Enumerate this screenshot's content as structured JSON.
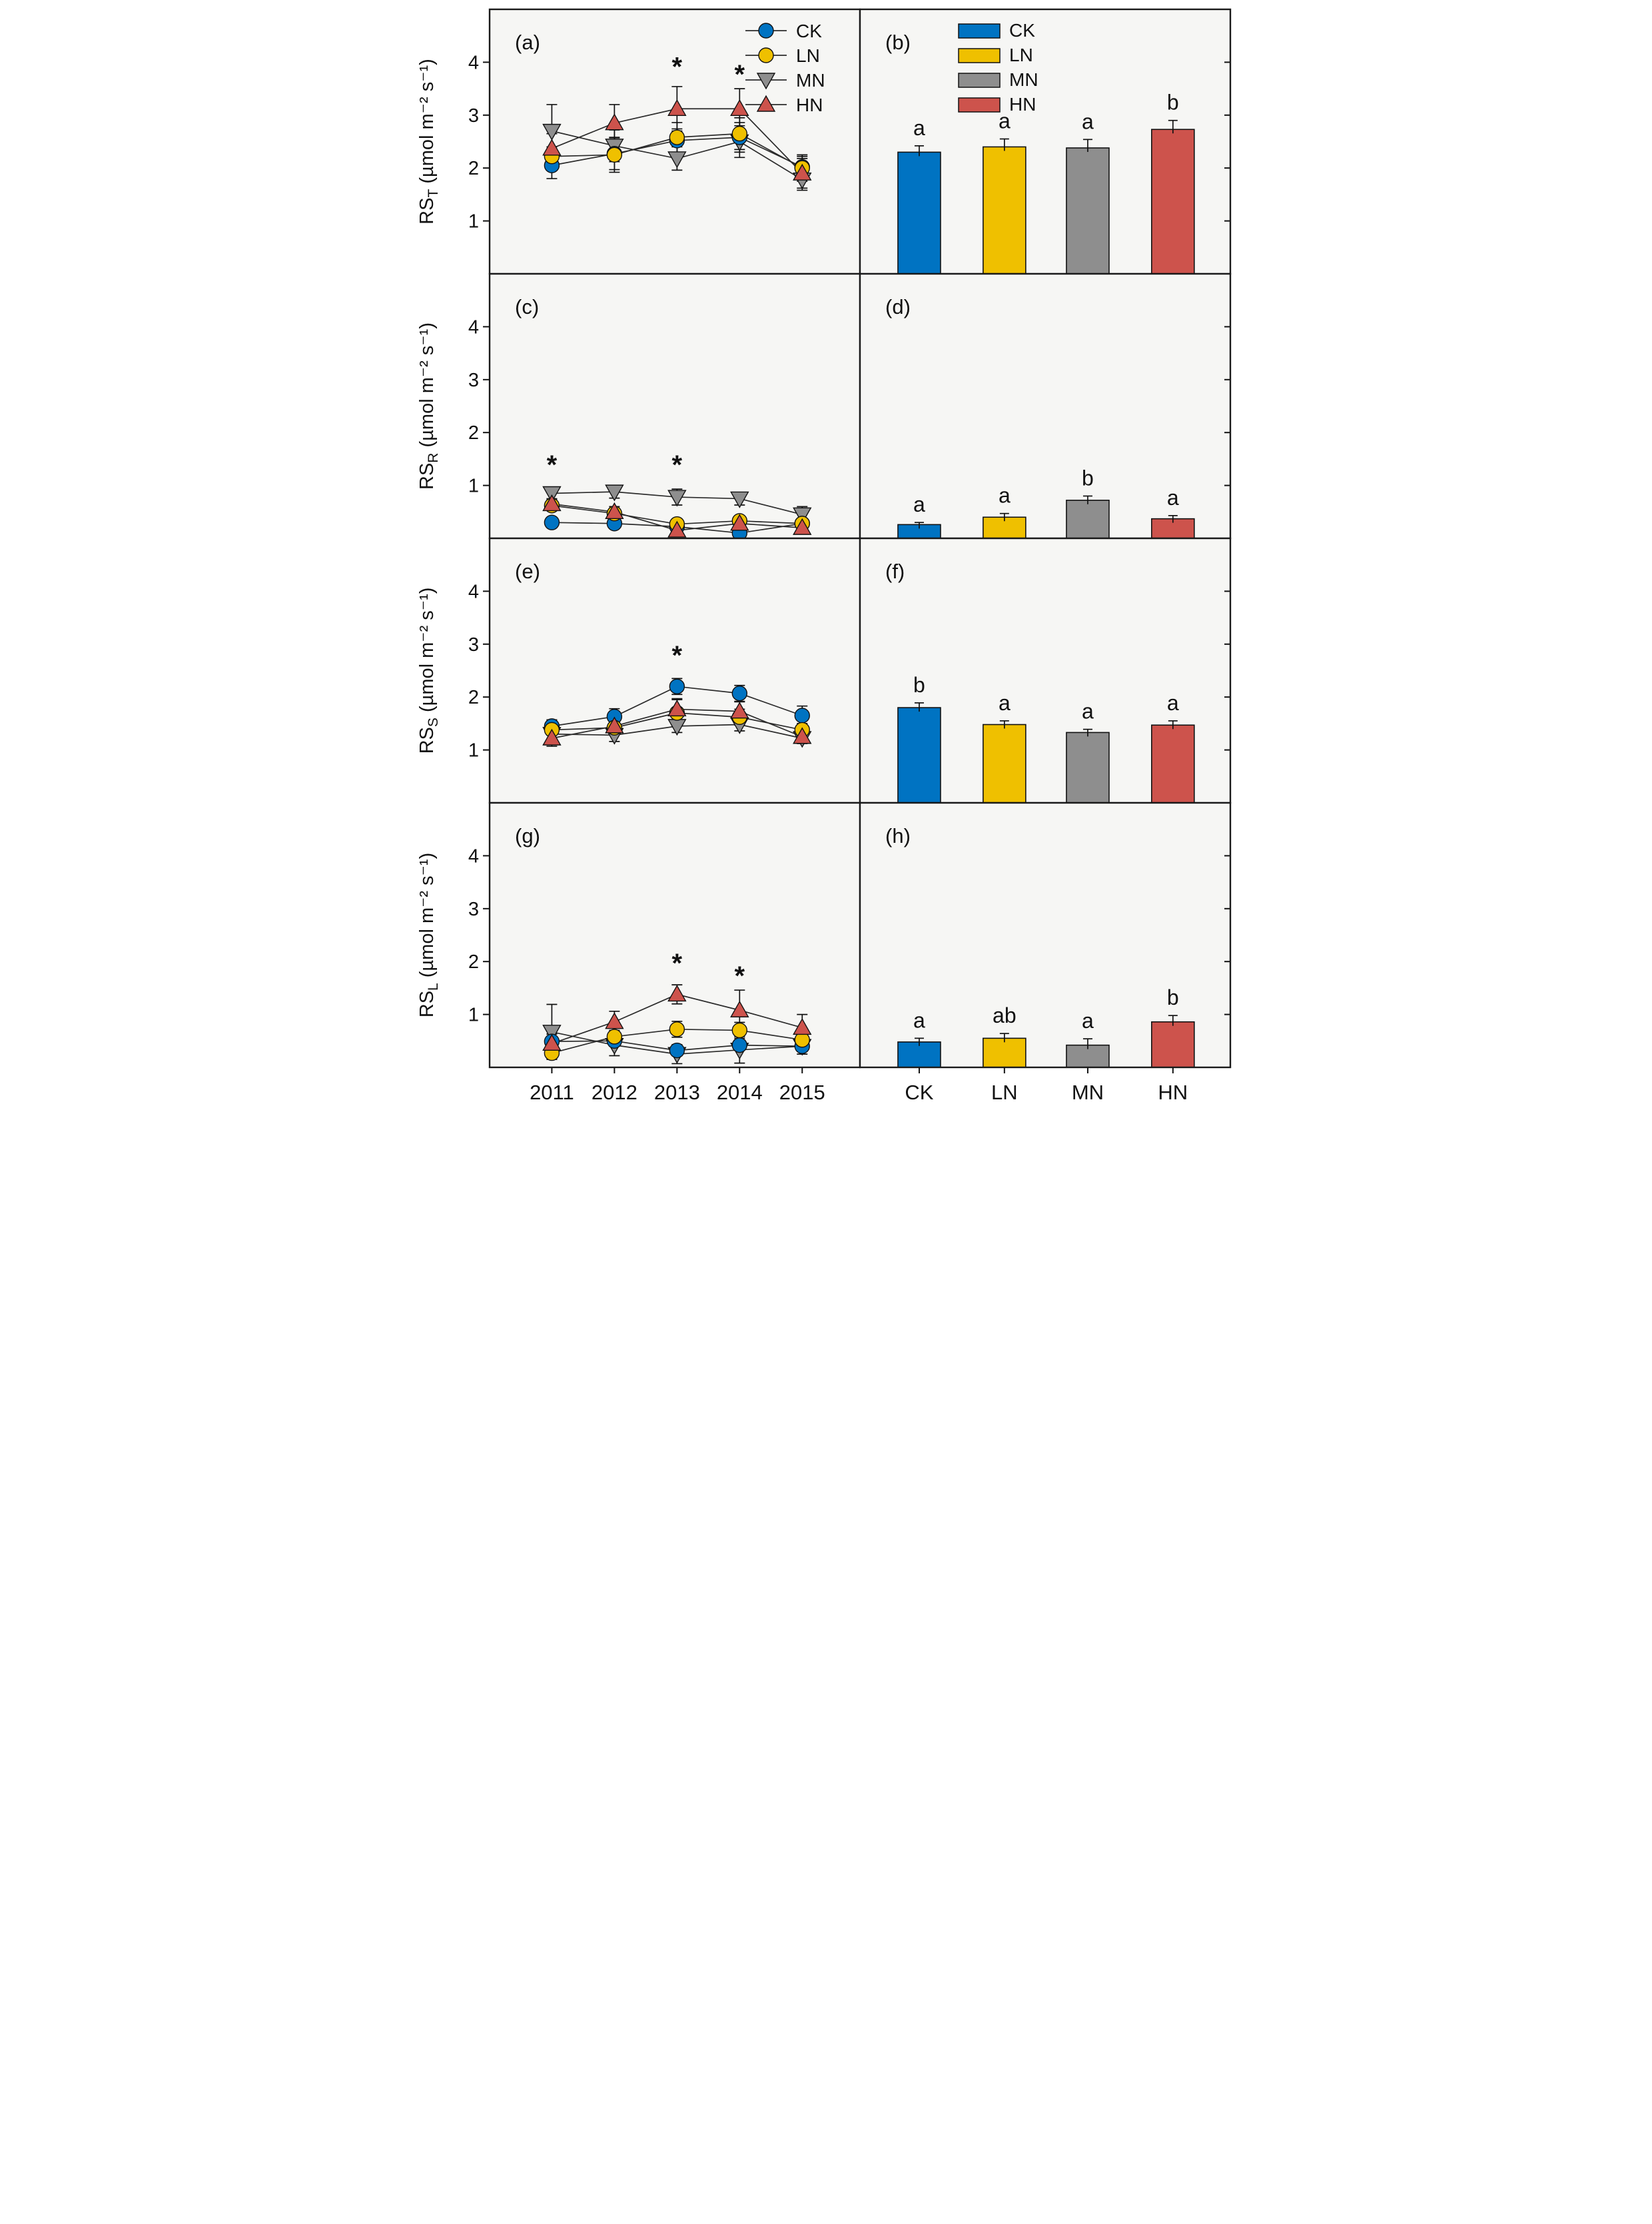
{
  "figure": {
    "background": "#ffffff",
    "panel_background": "#f6f6f4",
    "border_color": "#1a1a1a"
  },
  "palette": {
    "CK": "#0073C2",
    "LN": "#EFC000",
    "MN": "#8E8E8E",
    "HN": "#CD534C"
  },
  "axes": {
    "ylim": [
      0,
      5
    ],
    "yticks": [
      "1",
      "2",
      "3",
      "4"
    ],
    "ylabel_prefix": "RS",
    "ylabel_unit": "(µmol m⁻² s⁻¹)",
    "years": [
      "2011",
      "2012",
      "2013",
      "2014",
      "2015"
    ],
    "treatments": [
      "CK",
      "LN",
      "MN",
      "HN"
    ]
  },
  "legend": {
    "items": [
      {
        "label": "CK",
        "marker": "circle",
        "color": "#0073C2"
      },
      {
        "label": "LN",
        "marker": "circle",
        "color": "#EFC000"
      },
      {
        "label": "MN",
        "marker": "triangle-down",
        "color": "#8E8E8E"
      },
      {
        "label": "HN",
        "marker": "triangle-up",
        "color": "#CD534C"
      }
    ]
  },
  "chart_data": [
    {
      "panel": "(a)",
      "type": "line",
      "row": 0,
      "col": 0,
      "ylabel_sub": "T",
      "x": [
        "2011",
        "2012",
        "2013",
        "2014",
        "2015"
      ],
      "series": [
        {
          "name": "CK",
          "marker": "circle",
          "color": "#0073C2",
          "values": [
            2.05,
            2.27,
            2.52,
            2.58,
            2.02
          ],
          "errors": [
            0.25,
            0.3,
            0.22,
            0.28,
            0.2
          ]
        },
        {
          "name": "LN",
          "marker": "circle",
          "color": "#EFC000",
          "values": [
            2.22,
            2.25,
            2.58,
            2.65,
            2.0
          ],
          "errors": [
            0.18,
            0.33,
            0.28,
            0.3,
            0.25
          ]
        },
        {
          "name": "MN",
          "marker": "triangle-down",
          "color": "#8E8E8E",
          "values": [
            2.7,
            2.42,
            2.18,
            2.5,
            1.78
          ],
          "errors": [
            0.5,
            0.3,
            0.22,
            0.3,
            0.2
          ]
        },
        {
          "name": "HN",
          "marker": "triangle-up",
          "color": "#CD534C",
          "values": [
            2.37,
            2.85,
            3.12,
            3.12,
            1.9
          ],
          "errors": [
            0.28,
            0.35,
            0.42,
            0.38,
            0.28
          ]
        }
      ],
      "asterisks": [
        {
          "x": "2013",
          "y": 3.75,
          "symbol": "*"
        },
        {
          "x": "2014",
          "y": 3.6,
          "symbol": "*"
        }
      ],
      "show_line_legend": true,
      "show_xticklabels": false
    },
    {
      "panel": "(b)",
      "type": "bar",
      "row": 0,
      "col": 1,
      "categories": [
        "CK",
        "LN",
        "MN",
        "HN"
      ],
      "values": [
        2.3,
        2.4,
        2.38,
        2.73
      ],
      "errors": [
        0.12,
        0.15,
        0.16,
        0.17
      ],
      "letters": [
        "a",
        "a",
        "a",
        "b"
      ],
      "colors": [
        "#0073C2",
        "#EFC000",
        "#8E8E8E",
        "#CD534C"
      ],
      "show_bar_legend": true,
      "show_xticklabels": false
    },
    {
      "panel": "(c)",
      "type": "line",
      "row": 1,
      "col": 0,
      "ylabel_sub": "R",
      "x": [
        "2011",
        "2012",
        "2013",
        "2014",
        "2015"
      ],
      "series": [
        {
          "name": "CK",
          "marker": "circle",
          "color": "#0073C2",
          "values": [
            0.3,
            0.28,
            0.22,
            0.1,
            0.28
          ],
          "errors": [
            0.05,
            0.05,
            0.04,
            0.04,
            0.05
          ]
        },
        {
          "name": "LN",
          "marker": "circle",
          "color": "#EFC000",
          "values": [
            0.62,
            0.47,
            0.27,
            0.33,
            0.28
          ],
          "errors": [
            0.09,
            0.09,
            0.05,
            0.08,
            0.06
          ]
        },
        {
          "name": "MN",
          "marker": "triangle-down",
          "color": "#8E8E8E",
          "values": [
            0.85,
            0.88,
            0.78,
            0.75,
            0.45
          ],
          "errors": [
            0.12,
            0.12,
            0.15,
            0.12,
            0.15
          ]
        },
        {
          "name": "HN",
          "marker": "triangle-up",
          "color": "#CD534C",
          "values": [
            0.65,
            0.5,
            0.15,
            0.28,
            0.2
          ],
          "errors": [
            0.1,
            0.1,
            0.04,
            0.06,
            0.05
          ]
        }
      ],
      "asterisks": [
        {
          "x": "2011",
          "y": 1.22,
          "symbol": "*"
        },
        {
          "x": "2013",
          "y": 1.22,
          "symbol": "*"
        }
      ],
      "show_line_legend": false,
      "show_xticklabels": false
    },
    {
      "panel": "(d)",
      "type": "bar",
      "row": 1,
      "col": 1,
      "categories": [
        "CK",
        "LN",
        "MN",
        "HN"
      ],
      "values": [
        0.26,
        0.4,
        0.72,
        0.37
      ],
      "errors": [
        0.04,
        0.07,
        0.08,
        0.06
      ],
      "letters": [
        "a",
        "a",
        "b",
        "a"
      ],
      "colors": [
        "#0073C2",
        "#EFC000",
        "#8E8E8E",
        "#CD534C"
      ],
      "show_bar_legend": false,
      "show_xticklabels": false
    },
    {
      "panel": "(e)",
      "type": "line",
      "row": 2,
      "col": 0,
      "ylabel_sub": "S",
      "x": [
        "2011",
        "2012",
        "2013",
        "2014",
        "2015"
      ],
      "series": [
        {
          "name": "CK",
          "marker": "circle",
          "color": "#0073C2",
          "values": [
            1.45,
            1.63,
            2.2,
            2.07,
            1.65
          ],
          "errors": [
            0.12,
            0.15,
            0.15,
            0.15,
            0.18
          ]
        },
        {
          "name": "LN",
          "marker": "circle",
          "color": "#EFC000",
          "values": [
            1.38,
            1.42,
            1.7,
            1.62,
            1.38
          ],
          "errors": [
            0.1,
            0.12,
            0.25,
            0.15,
            0.12
          ]
        },
        {
          "name": "MN",
          "marker": "triangle-down",
          "color": "#8E8E8E",
          "values": [
            1.3,
            1.28,
            1.45,
            1.48,
            1.22
          ],
          "errors": [
            0.1,
            0.12,
            0.12,
            0.12,
            0.1
          ]
        },
        {
          "name": "HN",
          "marker": "triangle-up",
          "color": "#CD534C",
          "values": [
            1.22,
            1.45,
            1.77,
            1.73,
            1.25
          ],
          "errors": [
            0.15,
            0.15,
            0.2,
            0.18,
            0.12
          ]
        }
      ],
      "asterisks": [
        {
          "x": "2013",
          "y": 2.62,
          "symbol": "*"
        }
      ],
      "show_line_legend": false,
      "show_xticklabels": false
    },
    {
      "panel": "(f)",
      "type": "bar",
      "row": 2,
      "col": 1,
      "categories": [
        "CK",
        "LN",
        "MN",
        "HN"
      ],
      "values": [
        1.8,
        1.48,
        1.33,
        1.47
      ],
      "errors": [
        0.09,
        0.07,
        0.06,
        0.08
      ],
      "letters": [
        "b",
        "a",
        "a",
        "a"
      ],
      "colors": [
        "#0073C2",
        "#EFC000",
        "#8E8E8E",
        "#CD534C"
      ],
      "show_bar_legend": false,
      "show_xticklabels": false
    },
    {
      "panel": "(g)",
      "type": "line",
      "row": 3,
      "col": 0,
      "ylabel_sub": "L",
      "x": [
        "2011",
        "2012",
        "2013",
        "2014",
        "2015"
      ],
      "series": [
        {
          "name": "CK",
          "marker": "circle",
          "color": "#0073C2",
          "values": [
            0.49,
            0.5,
            0.32,
            0.42,
            0.4
          ],
          "errors": [
            0.14,
            0.1,
            0.1,
            0.1,
            0.1
          ]
        },
        {
          "name": "LN",
          "marker": "circle",
          "color": "#EFC000",
          "values": [
            0.27,
            0.58,
            0.72,
            0.7,
            0.52
          ],
          "errors": [
            0.1,
            0.12,
            0.15,
            0.15,
            0.12
          ]
        },
        {
          "name": "MN",
          "marker": "triangle-down",
          "color": "#8E8E8E",
          "values": [
            0.67,
            0.42,
            0.25,
            0.33,
            0.4
          ],
          "errors": [
            0.52,
            0.2,
            0.18,
            0.25,
            0.15
          ]
        },
        {
          "name": "HN",
          "marker": "triangle-up",
          "color": "#CD534C",
          "values": [
            0.45,
            0.86,
            1.38,
            1.08,
            0.75
          ],
          "errors": [
            0.12,
            0.2,
            0.18,
            0.38,
            0.25
          ]
        }
      ],
      "asterisks": [
        {
          "x": "2013",
          "y": 1.8,
          "symbol": "*"
        },
        {
          "x": "2014",
          "y": 1.56,
          "symbol": "*"
        }
      ],
      "show_line_legend": false,
      "show_xticklabels": true
    },
    {
      "panel": "(h)",
      "type": "bar",
      "row": 3,
      "col": 1,
      "categories": [
        "CK",
        "LN",
        "MN",
        "HN"
      ],
      "values": [
        0.48,
        0.55,
        0.42,
        0.86
      ],
      "errors": [
        0.07,
        0.09,
        0.12,
        0.12
      ],
      "letters": [
        "a",
        "ab",
        "a",
        "b"
      ],
      "colors": [
        "#0073C2",
        "#EFC000",
        "#8E8E8E",
        "#CD534C"
      ],
      "show_bar_legend": false,
      "show_xticklabels": true
    }
  ]
}
